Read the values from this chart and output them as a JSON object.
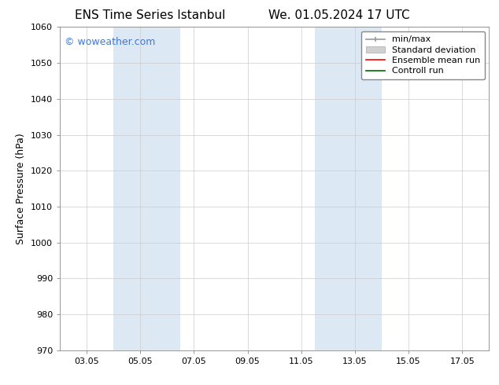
{
  "title_left": "ENS Time Series Istanbul",
  "title_right": "We. 01.05.2024 17 UTC",
  "ylabel": "Surface Pressure (hPa)",
  "ylim": [
    970,
    1060
  ],
  "yticks": [
    970,
    980,
    990,
    1000,
    1010,
    1020,
    1030,
    1040,
    1050,
    1060
  ],
  "xtick_labels": [
    "03.05",
    "05.05",
    "07.05",
    "09.05",
    "11.05",
    "13.05",
    "15.05",
    "17.05"
  ],
  "xtick_positions": [
    2,
    4,
    6,
    8,
    10,
    12,
    14,
    16
  ],
  "xlim": [
    1,
    17
  ],
  "shaded_bands": [
    {
      "xmin": 3.0,
      "xmax": 5.5
    },
    {
      "xmin": 10.5,
      "xmax": 13.0
    }
  ],
  "shade_color": "#dce9f5",
  "watermark": "© woweather.com",
  "watermark_color": "#4477cc",
  "bg_color": "#ffffff",
  "grid_color": "#cccccc",
  "title_fontsize": 11,
  "label_fontsize": 9,
  "tick_fontsize": 8,
  "legend_fontsize": 8
}
